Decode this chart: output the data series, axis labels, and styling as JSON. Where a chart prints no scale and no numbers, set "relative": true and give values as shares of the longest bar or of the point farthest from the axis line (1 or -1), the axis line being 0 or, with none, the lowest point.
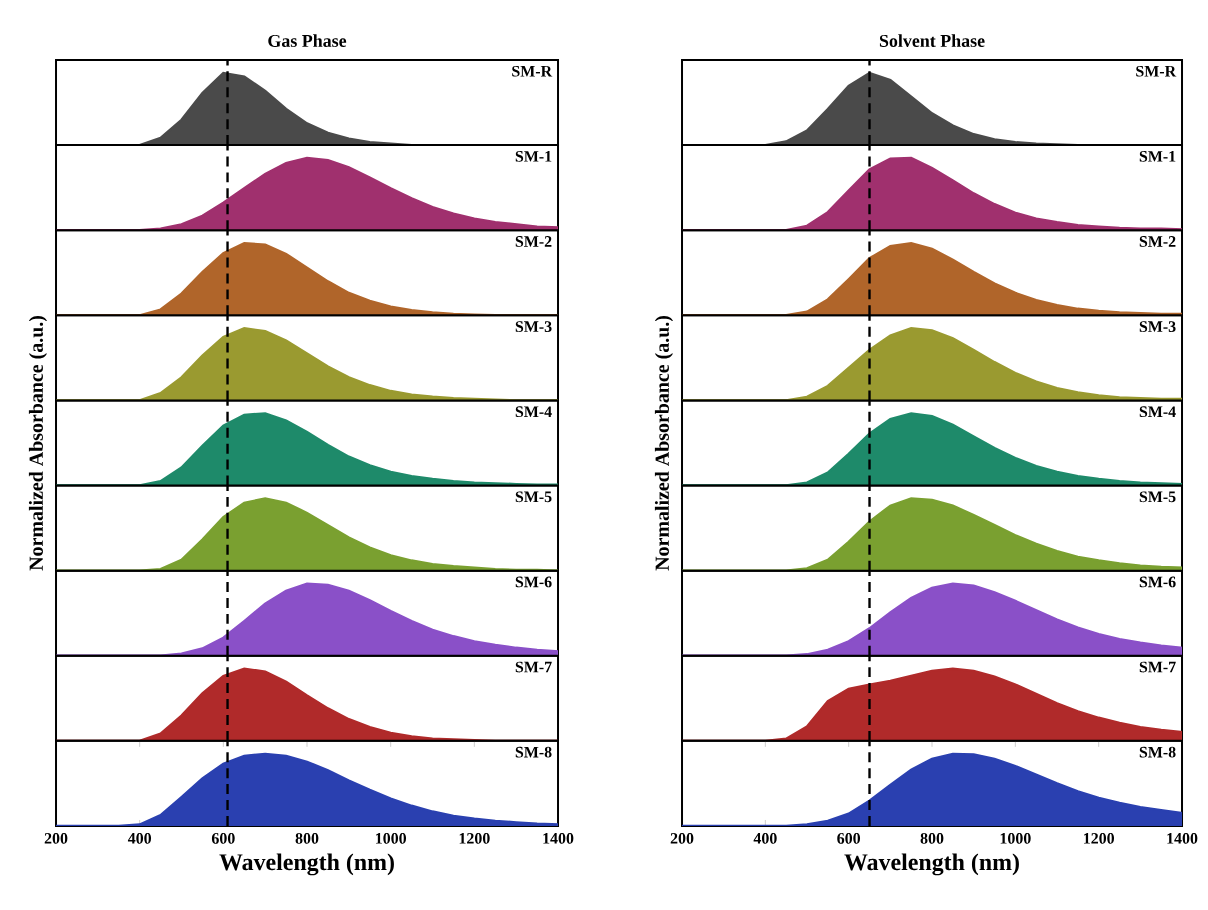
{
  "chart_data": [
    {
      "type": "area",
      "title": "Gas Phase",
      "relative": true,
      "xlim": [
        200,
        1400
      ],
      "tick_labels": false,
      "ref_lines": [
        {
          "axis": "x",
          "value": 610,
          "line_style": "dashed",
          "color": "#000000"
        }
      ],
      "x": [
        200,
        250,
        300,
        350,
        400,
        450,
        500,
        550,
        600,
        650,
        700,
        750,
        800,
        850,
        900,
        950,
        1000,
        1050,
        1100,
        1150,
        1200,
        1250,
        1300,
        1350,
        1400
      ],
      "series": [
        {
          "name": "SM-R",
          "color": "#4a4a4a",
          "values": [
            0,
            0,
            0,
            0,
            0,
            0.1,
            0.35,
            0.72,
            1,
            0.95,
            0.75,
            0.5,
            0.3,
            0.17,
            0.09,
            0.04,
            0.02,
            0,
            0,
            0,
            0,
            0,
            0,
            0,
            0
          ]
        }
      ]
    },
    {
      "type": "area",
      "relative": true,
      "xlim": [
        200,
        1400
      ],
      "tick_labels": false,
      "ref_lines": [
        {
          "axis": "x",
          "value": 610,
          "line_style": "dashed",
          "color": "#000000"
        }
      ],
      "x": [
        200,
        250,
        300,
        350,
        400,
        450,
        500,
        550,
        600,
        650,
        700,
        750,
        800,
        850,
        900,
        950,
        1000,
        1050,
        1100,
        1150,
        1200,
        1250,
        1300,
        1350,
        1400
      ],
      "series": [
        {
          "name": "SM-1",
          "color": "#a0306e",
          "values": [
            0,
            0,
            0,
            0,
            0,
            0.02,
            0.08,
            0.2,
            0.38,
            0.58,
            0.78,
            0.93,
            1,
            0.97,
            0.87,
            0.73,
            0.58,
            0.44,
            0.32,
            0.23,
            0.16,
            0.11,
            0.08,
            0.05,
            0.04
          ]
        }
      ]
    },
    {
      "type": "area",
      "relative": true,
      "xlim": [
        200,
        1400
      ],
      "tick_labels": false,
      "ref_lines": [
        {
          "axis": "x",
          "value": 610,
          "line_style": "dashed",
          "color": "#000000"
        }
      ],
      "x": [
        200,
        250,
        300,
        350,
        400,
        450,
        500,
        550,
        600,
        650,
        700,
        750,
        800,
        850,
        900,
        950,
        1000,
        1050,
        1100,
        1150,
        1200,
        1250,
        1300,
        1350,
        1400
      ],
      "series": [
        {
          "name": "SM-2",
          "color": "#b0652a",
          "values": [
            0,
            0,
            0,
            0,
            0,
            0.08,
            0.3,
            0.6,
            0.86,
            1,
            0.98,
            0.85,
            0.66,
            0.47,
            0.31,
            0.2,
            0.12,
            0.07,
            0.04,
            0.02,
            0.01,
            0,
            0,
            0,
            0
          ]
        }
      ]
    },
    {
      "type": "area",
      "relative": true,
      "xlim": [
        200,
        1400
      ],
      "tick_labels": false,
      "ref_lines": [
        {
          "axis": "x",
          "value": 610,
          "line_style": "dashed",
          "color": "#000000"
        }
      ],
      "x": [
        200,
        250,
        300,
        350,
        400,
        450,
        500,
        550,
        600,
        650,
        700,
        750,
        800,
        850,
        900,
        950,
        1000,
        1050,
        1100,
        1150,
        1200,
        1250,
        1300,
        1350,
        1400
      ],
      "series": [
        {
          "name": "SM-3",
          "color": "#9a9a30",
          "values": [
            0,
            0,
            0,
            0,
            0,
            0.1,
            0.32,
            0.62,
            0.88,
            1,
            0.96,
            0.83,
            0.65,
            0.47,
            0.32,
            0.21,
            0.13,
            0.08,
            0.05,
            0.03,
            0.02,
            0.01,
            0,
            0,
            0
          ]
        }
      ]
    },
    {
      "type": "area",
      "ylabel": "Normalized Absorbance (a.u.)",
      "relative": true,
      "xlim": [
        200,
        1400
      ],
      "tick_labels": false,
      "ref_lines": [
        {
          "axis": "x",
          "value": 610,
          "line_style": "dashed",
          "color": "#000000"
        }
      ],
      "x": [
        200,
        250,
        300,
        350,
        400,
        450,
        500,
        550,
        600,
        650,
        700,
        750,
        800,
        850,
        900,
        950,
        1000,
        1050,
        1100,
        1150,
        1200,
        1250,
        1300,
        1350,
        1400
      ],
      "series": [
        {
          "name": "SM-4",
          "color": "#1e8a6a",
          "values": [
            0,
            0,
            0,
            0,
            0,
            0.06,
            0.25,
            0.55,
            0.83,
            0.98,
            1,
            0.9,
            0.74,
            0.56,
            0.4,
            0.28,
            0.19,
            0.13,
            0.09,
            0.06,
            0.04,
            0.03,
            0.02,
            0.01,
            0.01
          ]
        }
      ]
    },
    {
      "type": "area",
      "relative": true,
      "xlim": [
        200,
        1400
      ],
      "tick_labels": false,
      "ref_lines": [
        {
          "axis": "x",
          "value": 610,
          "line_style": "dashed",
          "color": "#000000"
        }
      ],
      "x": [
        200,
        250,
        300,
        350,
        400,
        450,
        500,
        550,
        600,
        650,
        700,
        750,
        800,
        850,
        900,
        950,
        1000,
        1050,
        1100,
        1150,
        1200,
        1250,
        1300,
        1350,
        1400
      ],
      "series": [
        {
          "name": "SM-5",
          "color": "#7aa030",
          "values": [
            0,
            0,
            0,
            0,
            0,
            0.02,
            0.15,
            0.43,
            0.74,
            0.94,
            1,
            0.94,
            0.8,
            0.63,
            0.46,
            0.32,
            0.21,
            0.14,
            0.09,
            0.06,
            0.04,
            0.02,
            0.01,
            0.01,
            0
          ]
        }
      ]
    },
    {
      "type": "area",
      "relative": true,
      "xlim": [
        200,
        1400
      ],
      "tick_labels": false,
      "ref_lines": [
        {
          "axis": "x",
          "value": 610,
          "line_style": "dashed",
          "color": "#000000"
        }
      ],
      "x": [
        200,
        250,
        300,
        350,
        400,
        450,
        500,
        550,
        600,
        650,
        700,
        750,
        800,
        850,
        900,
        950,
        1000,
        1050,
        1100,
        1150,
        1200,
        1250,
        1300,
        1350,
        1400
      ],
      "series": [
        {
          "name": "SM-6",
          "color": "#8a50c8",
          "values": [
            0,
            0,
            0,
            0,
            0,
            0,
            0.03,
            0.1,
            0.25,
            0.48,
            0.72,
            0.9,
            1,
            0.98,
            0.9,
            0.77,
            0.62,
            0.48,
            0.36,
            0.27,
            0.2,
            0.15,
            0.11,
            0.08,
            0.06
          ]
        }
      ]
    },
    {
      "type": "area",
      "relative": true,
      "xlim": [
        200,
        1400
      ],
      "tick_labels": false,
      "ref_lines": [
        {
          "axis": "x",
          "value": 610,
          "line_style": "dashed",
          "color": "#000000"
        }
      ],
      "x": [
        200,
        250,
        300,
        350,
        400,
        450,
        500,
        550,
        600,
        650,
        700,
        750,
        800,
        850,
        900,
        950,
        1000,
        1050,
        1100,
        1150,
        1200,
        1250,
        1300,
        1350,
        1400
      ],
      "series": [
        {
          "name": "SM-7",
          "color": "#b02a2a",
          "values": [
            0,
            0,
            0,
            0,
            0,
            0.1,
            0.35,
            0.66,
            0.9,
            1,
            0.96,
            0.82,
            0.63,
            0.45,
            0.3,
            0.19,
            0.11,
            0.06,
            0.03,
            0.02,
            0.01,
            0,
            0,
            0,
            0
          ]
        }
      ]
    },
    {
      "type": "area",
      "xlabel": "Wavelength (nm)",
      "relative": true,
      "xlim": [
        200,
        1400
      ],
      "xticks": [
        200,
        400,
        600,
        800,
        1000,
        1200,
        1400
      ],
      "tick_labels": "x",
      "ref_lines": [
        {
          "axis": "x",
          "value": 610,
          "line_style": "dashed",
          "color": "#000000"
        }
      ],
      "x": [
        200,
        250,
        300,
        350,
        400,
        450,
        500,
        550,
        600,
        650,
        700,
        750,
        800,
        850,
        900,
        950,
        1000,
        1050,
        1100,
        1150,
        1200,
        1250,
        1300,
        1350,
        1400
      ],
      "series": [
        {
          "name": "SM-8",
          "color": "#2a40b0",
          "values": [
            0,
            0,
            0,
            0,
            0.02,
            0.15,
            0.4,
            0.66,
            0.86,
            0.97,
            1,
            0.97,
            0.89,
            0.77,
            0.63,
            0.5,
            0.38,
            0.28,
            0.2,
            0.14,
            0.1,
            0.07,
            0.05,
            0.03,
            0.02
          ]
        }
      ]
    },
    {
      "type": "area",
      "title": "Solvent Phase",
      "relative": true,
      "xlim": [
        200,
        1400
      ],
      "tick_labels": false,
      "ref_lines": [
        {
          "axis": "x",
          "value": 650,
          "line_style": "dashed",
          "color": "#000000"
        }
      ],
      "x": [
        200,
        250,
        300,
        350,
        400,
        450,
        500,
        550,
        600,
        650,
        700,
        750,
        800,
        850,
        900,
        950,
        1000,
        1050,
        1100,
        1150,
        1200,
        1250,
        1300,
        1350,
        1400
      ],
      "series": [
        {
          "name": "SM-R",
          "color": "#4a4a4a",
          "values": [
            0,
            0,
            0,
            0,
            0,
            0.05,
            0.2,
            0.5,
            0.82,
            1,
            0.9,
            0.67,
            0.44,
            0.27,
            0.15,
            0.08,
            0.04,
            0.02,
            0.01,
            0,
            0,
            0,
            0,
            0,
            0
          ]
        }
      ]
    },
    {
      "type": "area",
      "relative": true,
      "xlim": [
        200,
        1400
      ],
      "tick_labels": false,
      "ref_lines": [
        {
          "axis": "x",
          "value": 650,
          "line_style": "dashed",
          "color": "#000000"
        }
      ],
      "x": [
        200,
        250,
        300,
        350,
        400,
        450,
        500,
        550,
        600,
        650,
        700,
        750,
        800,
        850,
        900,
        950,
        1000,
        1050,
        1100,
        1150,
        1200,
        1250,
        1300,
        1350,
        1400
      ],
      "series": [
        {
          "name": "SM-1",
          "color": "#a0306e",
          "values": [
            0,
            0,
            0,
            0,
            0,
            0,
            0.06,
            0.25,
            0.55,
            0.84,
            0.99,
            1,
            0.86,
            0.69,
            0.51,
            0.36,
            0.24,
            0.16,
            0.11,
            0.07,
            0.05,
            0.03,
            0.02,
            0.02,
            0.01
          ]
        }
      ]
    },
    {
      "type": "area",
      "relative": true,
      "xlim": [
        200,
        1400
      ],
      "tick_labels": false,
      "ref_lines": [
        {
          "axis": "x",
          "value": 650,
          "line_style": "dashed",
          "color": "#000000"
        }
      ],
      "x": [
        200,
        250,
        300,
        350,
        400,
        450,
        500,
        550,
        600,
        650,
        700,
        750,
        800,
        850,
        900,
        950,
        1000,
        1050,
        1100,
        1150,
        1200,
        1250,
        1300,
        1350,
        1400
      ],
      "series": [
        {
          "name": "SM-2",
          "color": "#b0652a",
          "values": [
            0,
            0,
            0,
            0,
            0,
            0,
            0.05,
            0.22,
            0.5,
            0.79,
            0.96,
            1,
            0.92,
            0.77,
            0.6,
            0.44,
            0.31,
            0.21,
            0.14,
            0.09,
            0.06,
            0.04,
            0.03,
            0.02,
            0.02
          ]
        }
      ]
    },
    {
      "type": "area",
      "relative": true,
      "xlim": [
        200,
        1400
      ],
      "tick_labels": false,
      "ref_lines": [
        {
          "axis": "x",
          "value": 650,
          "line_style": "dashed",
          "color": "#000000"
        }
      ],
      "x": [
        200,
        250,
        300,
        350,
        400,
        450,
        500,
        550,
        600,
        650,
        700,
        750,
        800,
        850,
        900,
        950,
        1000,
        1050,
        1100,
        1150,
        1200,
        1250,
        1300,
        1350,
        1400
      ],
      "series": [
        {
          "name": "SM-3",
          "color": "#9a9a30",
          "values": [
            0,
            0,
            0,
            0,
            0,
            0,
            0.05,
            0.2,
            0.45,
            0.7,
            0.9,
            1,
            0.97,
            0.86,
            0.7,
            0.53,
            0.38,
            0.26,
            0.17,
            0.11,
            0.07,
            0.04,
            0.03,
            0.02,
            0.02
          ]
        }
      ]
    },
    {
      "type": "area",
      "ylabel": "Normalized Absorbance (a.u.)",
      "relative": true,
      "xlim": [
        200,
        1400
      ],
      "tick_labels": false,
      "ref_lines": [
        {
          "axis": "x",
          "value": 650,
          "line_style": "dashed",
          "color": "#000000"
        }
      ],
      "x": [
        200,
        250,
        300,
        350,
        400,
        450,
        500,
        550,
        600,
        650,
        700,
        750,
        800,
        850,
        900,
        950,
        1000,
        1050,
        1100,
        1150,
        1200,
        1250,
        1300,
        1350,
        1400
      ],
      "series": [
        {
          "name": "SM-4",
          "color": "#1e8a6a",
          "values": [
            0,
            0,
            0,
            0,
            0,
            0,
            0.04,
            0.18,
            0.44,
            0.72,
            0.92,
            1,
            0.96,
            0.84,
            0.68,
            0.52,
            0.38,
            0.27,
            0.19,
            0.13,
            0.09,
            0.06,
            0.04,
            0.03,
            0.02
          ]
        }
      ]
    },
    {
      "type": "area",
      "relative": true,
      "xlim": [
        200,
        1400
      ],
      "tick_labels": false,
      "ref_lines": [
        {
          "axis": "x",
          "value": 650,
          "line_style": "dashed",
          "color": "#000000"
        }
      ],
      "x": [
        200,
        250,
        300,
        350,
        400,
        450,
        500,
        550,
        600,
        650,
        700,
        750,
        800,
        850,
        900,
        950,
        1000,
        1050,
        1100,
        1150,
        1200,
        1250,
        1300,
        1350,
        1400
      ],
      "series": [
        {
          "name": "SM-5",
          "color": "#7aa030",
          "values": [
            0,
            0,
            0,
            0,
            0,
            0,
            0.03,
            0.15,
            0.4,
            0.68,
            0.9,
            1,
            0.98,
            0.9,
            0.77,
            0.63,
            0.49,
            0.37,
            0.27,
            0.19,
            0.14,
            0.1,
            0.07,
            0.05,
            0.04
          ]
        }
      ]
    },
    {
      "type": "area",
      "relative": true,
      "xlim": [
        200,
        1400
      ],
      "tick_labels": false,
      "ref_lines": [
        {
          "axis": "x",
          "value": 650,
          "line_style": "dashed",
          "color": "#000000"
        }
      ],
      "x": [
        200,
        250,
        300,
        350,
        400,
        450,
        500,
        550,
        600,
        650,
        700,
        750,
        800,
        850,
        900,
        950,
        1000,
        1050,
        1100,
        1150,
        1200,
        1250,
        1300,
        1350,
        1400
      ],
      "series": [
        {
          "name": "SM-6",
          "color": "#8a50c8",
          "values": [
            0,
            0,
            0,
            0,
            0,
            0,
            0.02,
            0.08,
            0.2,
            0.38,
            0.6,
            0.8,
            0.94,
            1,
            0.97,
            0.88,
            0.76,
            0.63,
            0.5,
            0.39,
            0.3,
            0.23,
            0.18,
            0.14,
            0.11
          ]
        }
      ]
    },
    {
      "type": "area",
      "relative": true,
      "xlim": [
        200,
        1400
      ],
      "tick_labels": false,
      "ref_lines": [
        {
          "axis": "x",
          "value": 650,
          "line_style": "dashed",
          "color": "#000000"
        }
      ],
      "x": [
        200,
        250,
        300,
        350,
        400,
        450,
        500,
        550,
        600,
        650,
        700,
        750,
        800,
        850,
        900,
        950,
        1000,
        1050,
        1100,
        1150,
        1200,
        1250,
        1300,
        1350,
        1400
      ],
      "series": [
        {
          "name": "SM-7",
          "color": "#b02a2a",
          "values": [
            0,
            0,
            0,
            0,
            0,
            0.03,
            0.2,
            0.55,
            0.72,
            0.78,
            0.83,
            0.9,
            0.97,
            1,
            0.97,
            0.89,
            0.78,
            0.65,
            0.52,
            0.41,
            0.32,
            0.25,
            0.19,
            0.15,
            0.12
          ]
        }
      ]
    },
    {
      "type": "area",
      "xlabel": "Wavelength (nm)",
      "relative": true,
      "xlim": [
        200,
        1400
      ],
      "xticks": [
        200,
        400,
        600,
        800,
        1000,
        1200,
        1400
      ],
      "tick_labels": "x",
      "ref_lines": [
        {
          "axis": "x",
          "value": 650,
          "line_style": "dashed",
          "color": "#000000"
        }
      ],
      "x": [
        200,
        250,
        300,
        350,
        400,
        450,
        500,
        550,
        600,
        650,
        700,
        750,
        800,
        850,
        900,
        950,
        1000,
        1050,
        1100,
        1150,
        1200,
        1250,
        1300,
        1350,
        1400
      ],
      "series": [
        {
          "name": "SM-8",
          "color": "#2a40b0",
          "values": [
            0,
            0,
            0,
            0,
            0,
            0,
            0.02,
            0.07,
            0.17,
            0.35,
            0.57,
            0.78,
            0.93,
            1,
            0.99,
            0.93,
            0.83,
            0.71,
            0.59,
            0.48,
            0.39,
            0.32,
            0.26,
            0.22,
            0.18
          ]
        }
      ]
    }
  ]
}
